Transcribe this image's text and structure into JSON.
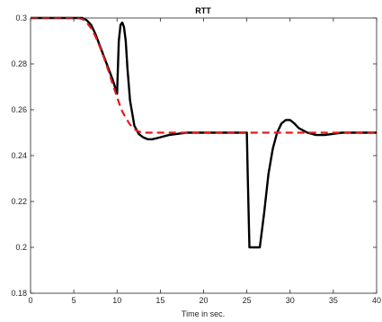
{
  "chart_data": {
    "type": "line",
    "title": "RTT",
    "xlabel": "Time in sec.",
    "ylabel": "",
    "xlim": [
      0,
      40
    ],
    "ylim": [
      0.18,
      0.3
    ],
    "x_ticks": [
      0,
      5,
      10,
      15,
      20,
      25,
      30,
      35,
      40
    ],
    "x_tick_labels": [
      "0",
      "5",
      "10",
      "15",
      "20",
      "25",
      "30",
      "35",
      "40"
    ],
    "y_ticks": [
      0.18,
      0.2,
      0.22,
      0.24,
      0.26,
      0.28,
      0.3
    ],
    "y_tick_labels": [
      "0.18",
      "0.2",
      "0.22",
      "0.24",
      "0.26",
      "0.28",
      "0.3"
    ],
    "grid": false,
    "legend": "none",
    "series": [
      {
        "style": "solid",
        "color": "#000000",
        "x": [
          0,
          6,
          6.5,
          7,
          7.5,
          8,
          8.5,
          9,
          9.5,
          10,
          10.2,
          10.4,
          10.6,
          10.8,
          11.0,
          11.2,
          11.5,
          12,
          12.5,
          13,
          13.5,
          14,
          14.5,
          15,
          16,
          17,
          18,
          19,
          20,
          21,
          22,
          23,
          24,
          25,
          25.1,
          25.3,
          25.5,
          26,
          26.2,
          26.5,
          27,
          27.5,
          28,
          28.5,
          29,
          29.5,
          30,
          30.5,
          31,
          32,
          33,
          34,
          35,
          36,
          37,
          38,
          39,
          40
        ],
        "y": [
          0.3,
          0.3,
          0.299,
          0.297,
          0.293,
          0.288,
          0.283,
          0.278,
          0.273,
          0.267,
          0.29,
          0.297,
          0.298,
          0.296,
          0.29,
          0.278,
          0.264,
          0.253,
          0.2495,
          0.248,
          0.2472,
          0.2471,
          0.2475,
          0.248,
          0.249,
          0.2495,
          0.25,
          0.25,
          0.25,
          0.25,
          0.25,
          0.25,
          0.25,
          0.25,
          0.232,
          0.2,
          0.2,
          0.2,
          0.2,
          0.2,
          0.215,
          0.232,
          0.243,
          0.25,
          0.254,
          0.2555,
          0.2555,
          0.254,
          0.252,
          0.25,
          0.249,
          0.249,
          0.2495,
          0.25,
          0.25,
          0.25,
          0.25,
          0.25
        ]
      },
      {
        "style": "dashed",
        "color": "#e41a1c",
        "x": [
          0,
          5.5,
          6,
          6.5,
          7,
          7.5,
          8,
          8.5,
          9,
          9.5,
          10,
          10.5,
          11,
          11.5,
          12,
          12.5,
          13,
          13.5,
          14,
          15,
          16,
          20,
          25,
          30,
          35,
          40
        ],
        "y": [
          0.3,
          0.3,
          0.2995,
          0.298,
          0.2955,
          0.292,
          0.2875,
          0.2825,
          0.277,
          0.271,
          0.2655,
          0.26,
          0.2565,
          0.2535,
          0.2515,
          0.2505,
          0.25,
          0.25,
          0.25,
          0.25,
          0.25,
          0.25,
          0.25,
          0.25,
          0.25,
          0.25
        ]
      }
    ]
  }
}
